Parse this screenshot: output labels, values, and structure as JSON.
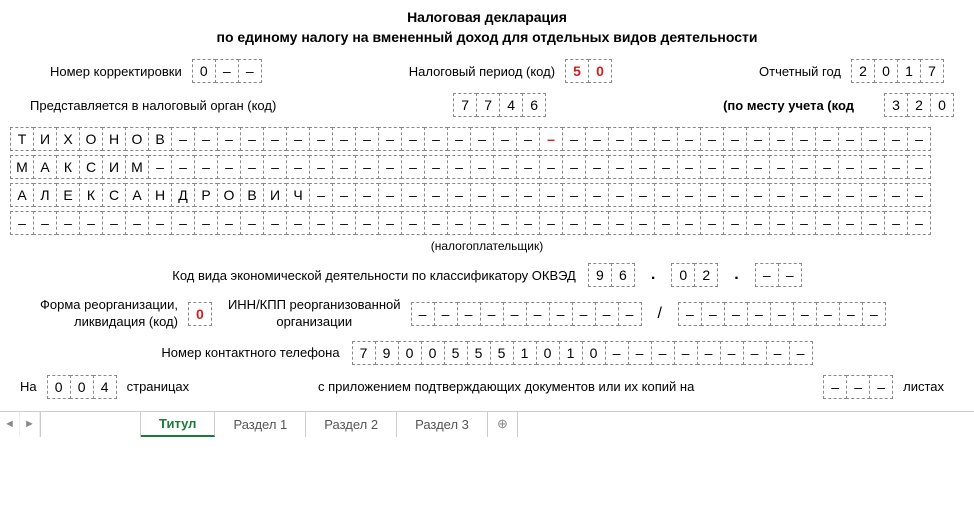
{
  "title_line1": "Налоговая декларация",
  "title_line2": "по единому налогу на вмененный доход для отдельных видов деятельности",
  "correction_label": "Номер корректировки",
  "correction_value": [
    "0",
    "–",
    "–"
  ],
  "tax_period_label": "Налоговый период (код)",
  "tax_period_value": [
    "5",
    "0"
  ],
  "tax_period_red": [
    true,
    true
  ],
  "report_year_label": "Отчетный год",
  "report_year_value": [
    "2",
    "0",
    "1",
    "7"
  ],
  "submitted_to_label": "Представляется в налоговый орган (код)",
  "submitted_to_value": [
    "7",
    "7",
    "4",
    "6"
  ],
  "place_label": "(по месту учета (код",
  "place_value": [
    "3",
    "2",
    "0"
  ],
  "name_line1": [
    "Т",
    "И",
    "Х",
    "О",
    "Н",
    "О",
    "В",
    "–",
    "–",
    "–",
    "–",
    "–",
    "–",
    "–",
    "–",
    "–",
    "–",
    "–",
    "–",
    "–",
    "–",
    "–",
    "–",
    "–",
    "–",
    "–",
    "–",
    "–",
    "–",
    "–",
    "–",
    "–",
    "–",
    "–",
    "–",
    "–",
    "–",
    "–",
    "–",
    "–"
  ],
  "name_line1_red_idx": 23,
  "name_line2": [
    "М",
    "А",
    "К",
    "С",
    "И",
    "М",
    "–",
    "–",
    "–",
    "–",
    "–",
    "–",
    "–",
    "–",
    "–",
    "–",
    "–",
    "–",
    "–",
    "–",
    "–",
    "–",
    "–",
    "–",
    "–",
    "–",
    "–",
    "–",
    "–",
    "–",
    "–",
    "–",
    "–",
    "–",
    "–",
    "–",
    "–",
    "–",
    "–",
    "–"
  ],
  "name_line3": [
    "А",
    "Л",
    "Е",
    "К",
    "С",
    "А",
    "Н",
    "Д",
    "Р",
    "О",
    "В",
    "И",
    "Ч",
    "–",
    "–",
    "–",
    "–",
    "–",
    "–",
    "–",
    "–",
    "–",
    "–",
    "–",
    "–",
    "–",
    "–",
    "–",
    "–",
    "–",
    "–",
    "–",
    "–",
    "–",
    "–",
    "–",
    "–",
    "–",
    "–",
    "–"
  ],
  "name_line4": [
    "–",
    "–",
    "–",
    "–",
    "–",
    "–",
    "–",
    "–",
    "–",
    "–",
    "–",
    "–",
    "–",
    "–",
    "–",
    "–",
    "–",
    "–",
    "–",
    "–",
    "–",
    "–",
    "–",
    "–",
    "–",
    "–",
    "–",
    "–",
    "–",
    "–",
    "–",
    "–",
    "–",
    "–",
    "–",
    "–",
    "–",
    "–",
    "–",
    "–"
  ],
  "taxpayer_caption": "(налогоплательщик)",
  "okved_label": "Код вида экономической деятельности по классификатору ОКВЭД",
  "okved_g1": [
    "9",
    "6"
  ],
  "okved_g2": [
    "0",
    "2"
  ],
  "okved_g3": [
    "–",
    "–"
  ],
  "reorg_label1": "Форма реорганизации,",
  "reorg_label2": "ликвидация (код)",
  "reorg_value": [
    "0"
  ],
  "reorg_red": [
    true
  ],
  "inn_label1": "ИНН/КПП реорганизованной",
  "inn_label2": "организации",
  "inn_g1": [
    "–",
    "–",
    "–",
    "–",
    "–",
    "–",
    "–",
    "–",
    "–",
    "–"
  ],
  "inn_g2": [
    "–",
    "–",
    "–",
    "–",
    "–",
    "–",
    "–",
    "–",
    "–"
  ],
  "phone_label": "Номер контактного телефона",
  "phone_value": [
    "7",
    "9",
    "0",
    "0",
    "5",
    "5",
    "5",
    "1",
    "0",
    "1",
    "0",
    "–",
    "–",
    "–",
    "–",
    "–",
    "–",
    "–",
    "–",
    "–"
  ],
  "pages_on": "На",
  "pages_value": [
    "0",
    "0",
    "4"
  ],
  "pages_label": "страницах",
  "attach_label": "с приложением подтверждающих документов или их копий на",
  "attach_value": [
    "–",
    "–",
    "–"
  ],
  "sheets_label": "листах",
  "tabs": {
    "active": "Титул",
    "others": [
      "Раздел 1",
      "Раздел 2",
      "Раздел 3"
    ]
  }
}
